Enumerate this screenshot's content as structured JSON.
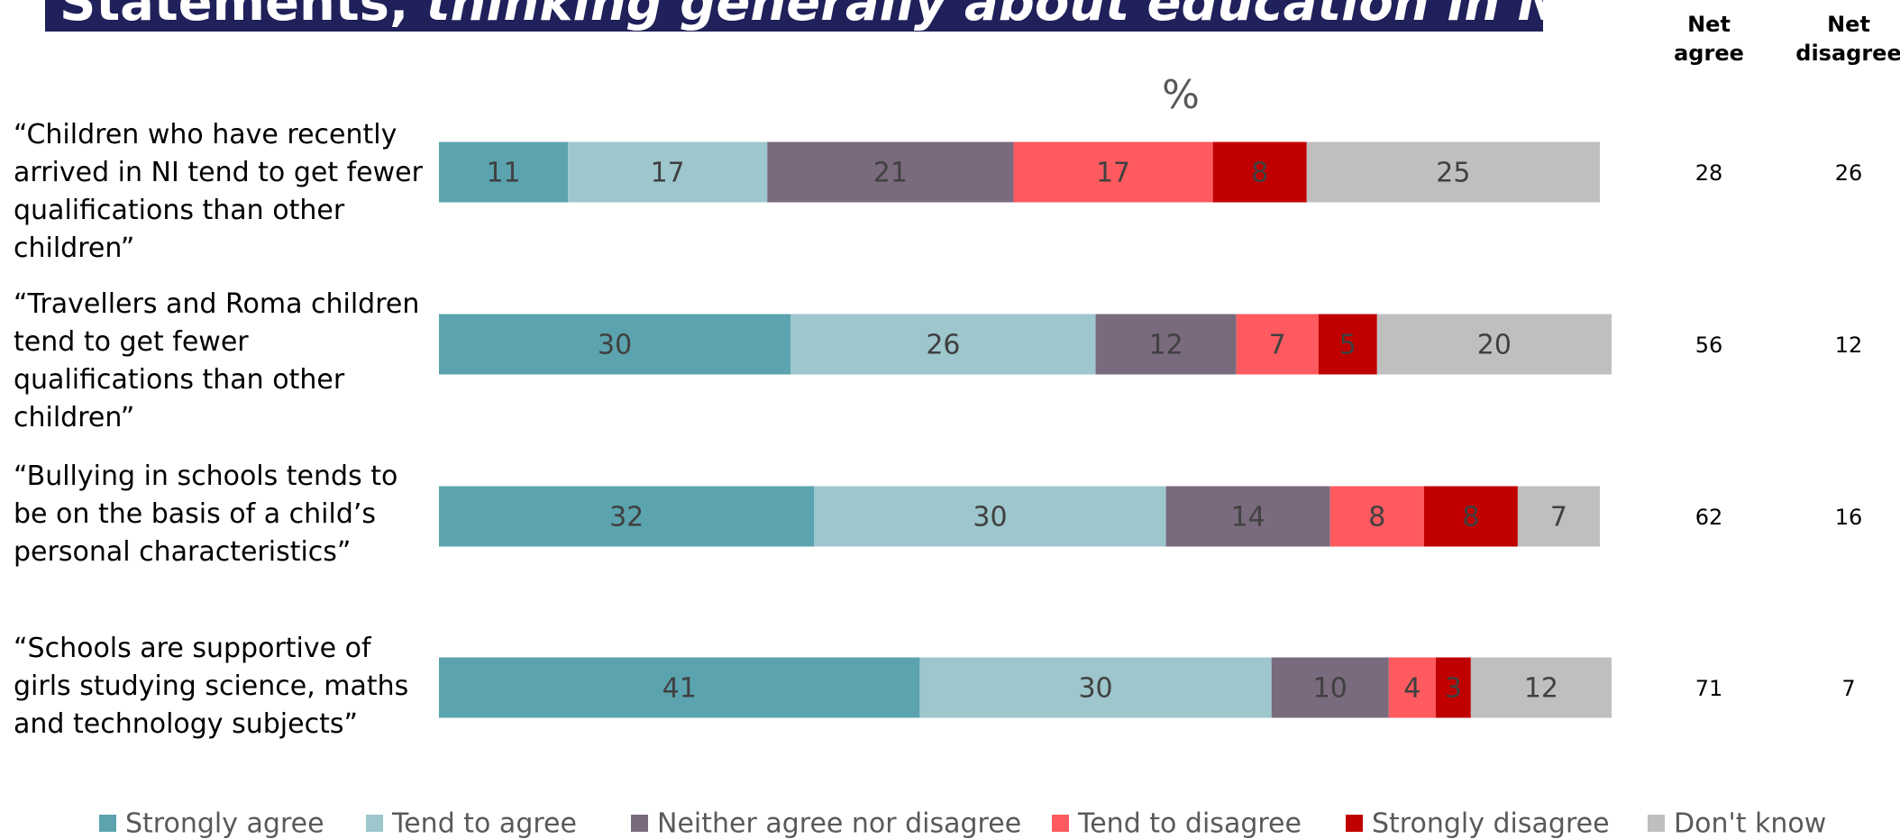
{
  "chart_data": {
    "type": "stacked_bar_horizontal",
    "title": [
      "Statements,",
      "thinking generally about education in NI:"
    ],
    "xlabel": "%",
    "categories": [
      "“Children who have recently arrived in NI tend to get fewer qualifications than other children”",
      "“Travellers and Roma children tend to get fewer qualifications than other children”",
      "“Bullying in schools tends to be on the basis of a child’s personal characteristics”",
      "“Schools are supportive of girls studying science, maths and technology subjects”"
    ],
    "series": [
      {
        "name": "Strongly agree",
        "color": "#5ba3ae",
        "values": [
          11,
          30,
          32,
          41
        ]
      },
      {
        "name": "Tend to agree",
        "color": "#9dc6cd",
        "values": [
          17,
          26,
          30,
          30
        ]
      },
      {
        "name": "Neither agree nor disagree",
        "color": "#796a7d",
        "values": [
          21,
          12,
          14,
          10
        ]
      },
      {
        "name": "Tend to disagree",
        "color": "#ff5a5f",
        "values": [
          17,
          7,
          8,
          4
        ]
      },
      {
        "name": "Strongly disagree",
        "color": "#c00000",
        "values": [
          8,
          5,
          8,
          3
        ]
      },
      {
        "name": "Don't know",
        "color": "#bfbfbf",
        "values": [
          25,
          20,
          7,
          12
        ]
      }
    ],
    "xlim": [
      0,
      100
    ],
    "net_agree_label": "Net agree",
    "net_disagree_label": "Net disagree",
    "net_agree": [
      28,
      56,
      62,
      71
    ],
    "net_disagree": [
      26,
      12,
      16,
      7
    ]
  }
}
